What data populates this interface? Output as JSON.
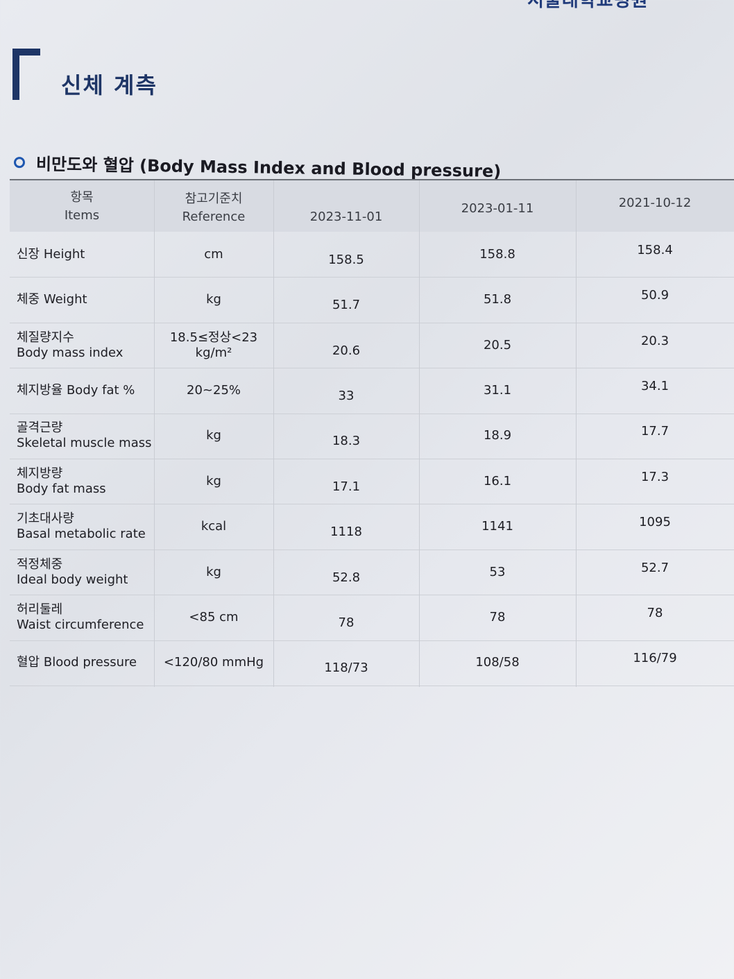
{
  "header_fragment": "서울대학교병원",
  "section_title": "신체 계측",
  "subtitle": "비만도와 혈압 (Body Mass Index and Blood pressure)",
  "table": {
    "headers": {
      "items_ko": "항목",
      "items_en": "Items",
      "ref_ko": "참고기준치",
      "ref_en": "Reference",
      "dates": [
        "2023-11-01",
        "2023-01-11",
        "2021-10-12"
      ]
    },
    "rows": [
      {
        "item": [
          "신장 Height"
        ],
        "ref": [
          "cm"
        ],
        "values": [
          "158.5",
          "158.8",
          "158.4"
        ]
      },
      {
        "item": [
          "체중 Weight"
        ],
        "ref": [
          "kg"
        ],
        "values": [
          "51.7",
          "51.8",
          "50.9"
        ]
      },
      {
        "item": [
          "체질량지수",
          "Body mass index"
        ],
        "ref": [
          "18.5≤정상<23",
          "kg/m²"
        ],
        "values": [
          "20.6",
          "20.5",
          "20.3"
        ]
      },
      {
        "item": [
          "체지방율 Body fat %"
        ],
        "ref": [
          "20~25%"
        ],
        "values": [
          "33",
          "31.1",
          "34.1"
        ]
      },
      {
        "item": [
          "골격근량",
          "Skeletal muscle mass"
        ],
        "ref": [
          "kg"
        ],
        "values": [
          "18.3",
          "18.9",
          "17.7"
        ]
      },
      {
        "item": [
          "체지방량",
          "Body fat mass"
        ],
        "ref": [
          "kg"
        ],
        "values": [
          "17.1",
          "16.1",
          "17.3"
        ]
      },
      {
        "item": [
          "기초대사량",
          "Basal metabolic rate"
        ],
        "ref": [
          "kcal"
        ],
        "values": [
          "1118",
          "1141",
          "1095"
        ]
      },
      {
        "item": [
          "적정체중",
          "Ideal body weight"
        ],
        "ref": [
          "kg"
        ],
        "values": [
          "52.8",
          "53",
          "52.7"
        ]
      },
      {
        "item": [
          "허리둘레",
          "Waist circumference"
        ],
        "ref": [
          "<85 cm"
        ],
        "values": [
          "78",
          "78",
          "78"
        ]
      },
      {
        "item": [
          "혈압 Blood pressure"
        ],
        "ref": [
          "<120/80 mmHg"
        ],
        "values": [
          "118/73",
          "108/58",
          "116/79"
        ]
      }
    ]
  }
}
